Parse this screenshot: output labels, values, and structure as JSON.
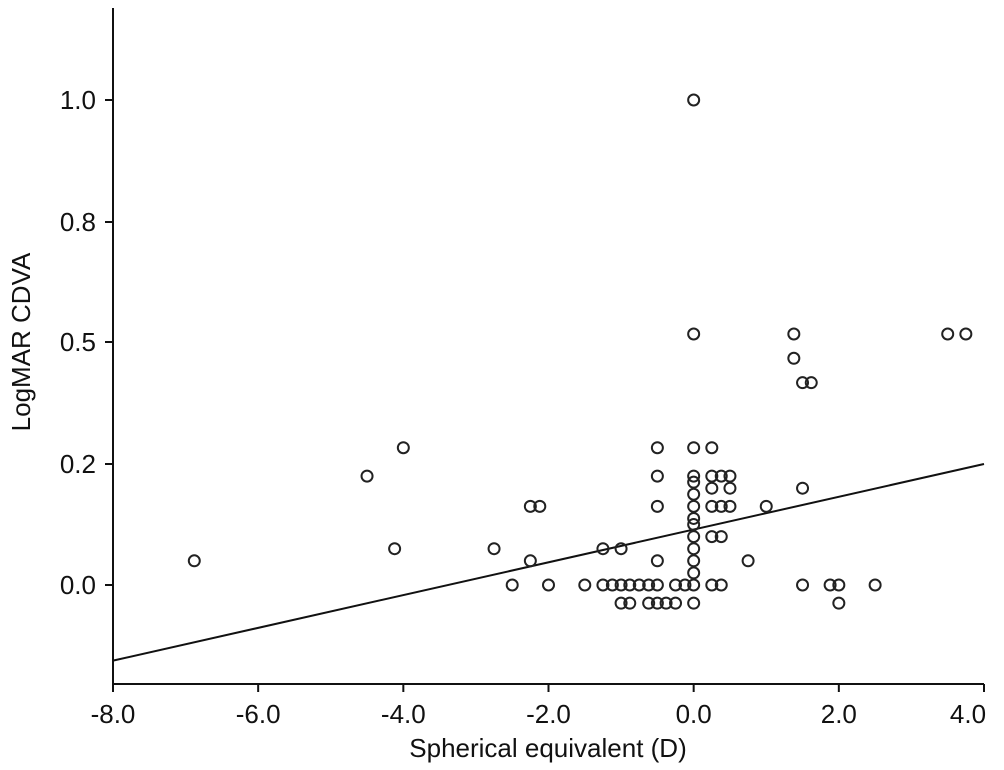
{
  "chart_data": {
    "type": "scatter",
    "title": "",
    "xlabel": "Spherical equivalent (D)",
    "ylabel": "LogMAR CDVA",
    "xlim": [
      -8.0,
      4.0
    ],
    "ylim": [
      -0.17,
      1.15
    ],
    "x_ticks": [
      -8.0,
      -6.0,
      -4.0,
      -2.0,
      0.0,
      2.0,
      4.0
    ],
    "x_tick_labels": [
      "-8.0",
      "-6.0",
      "-4.0",
      "-2.0",
      "0.0",
      "2.0",
      "4.0"
    ],
    "y_ticks": [
      0.0,
      0.2,
      0.5,
      0.8,
      1.0
    ],
    "y_tick_labels": [
      "0.0",
      "0.2",
      "0.5",
      "0.8",
      "1.0"
    ],
    "grid": false,
    "legend": "none",
    "colors": {
      "marker": "#222222",
      "line": "#111111",
      "axis": "#111111"
    },
    "series": [
      {
        "points": [
          [
            -6.88,
            0.04
          ],
          [
            -4.5,
            0.18
          ],
          [
            -4.12,
            0.06
          ],
          [
            -4.0,
            0.24
          ],
          [
            -2.75,
            0.06
          ],
          [
            -2.25,
            0.13
          ],
          [
            -2.12,
            0.13
          ],
          [
            -2.25,
            0.04
          ],
          [
            -2.5,
            0.0
          ],
          [
            -2.0,
            0.0
          ],
          [
            -1.5,
            0.0
          ],
          [
            -1.25,
            0.06
          ],
          [
            -1.0,
            0.06
          ],
          [
            -1.25,
            0.0
          ],
          [
            -1.12,
            0.0
          ],
          [
            -1.0,
            0.0
          ],
          [
            -0.88,
            0.0
          ],
          [
            -0.75,
            0.0
          ],
          [
            -0.62,
            0.0
          ],
          [
            -1.0,
            -0.03
          ],
          [
            -0.88,
            -0.03
          ],
          [
            -0.62,
            -0.03
          ],
          [
            -0.5,
            -0.03
          ],
          [
            -0.38,
            -0.03
          ],
          [
            -0.25,
            -0.03
          ],
          [
            -0.5,
            0.0
          ],
          [
            -0.25,
            0.0
          ],
          [
            -0.12,
            0.0
          ],
          [
            -0.5,
            0.04
          ],
          [
            -0.5,
            0.13
          ],
          [
            -0.5,
            0.18
          ],
          [
            -0.5,
            0.24
          ],
          [
            0.0,
            1.0
          ],
          [
            0.0,
            0.52
          ],
          [
            0.0,
            0.24
          ],
          [
            0.0,
            0.18
          ],
          [
            0.0,
            0.17
          ],
          [
            0.0,
            0.15
          ],
          [
            0.0,
            0.13
          ],
          [
            0.0,
            0.11
          ],
          [
            0.0,
            0.1
          ],
          [
            0.0,
            0.08
          ],
          [
            0.0,
            0.06
          ],
          [
            0.0,
            0.04
          ],
          [
            0.0,
            0.02
          ],
          [
            0.0,
            0.0
          ],
          [
            0.0,
            -0.03
          ],
          [
            0.25,
            0.24
          ],
          [
            0.25,
            0.18
          ],
          [
            0.25,
            0.16
          ],
          [
            0.25,
            0.13
          ],
          [
            0.25,
            0.08
          ],
          [
            0.25,
            0.0
          ],
          [
            0.38,
            0.18
          ],
          [
            0.38,
            0.13
          ],
          [
            0.38,
            0.08
          ],
          [
            0.38,
            0.0
          ],
          [
            0.5,
            0.18
          ],
          [
            0.5,
            0.16
          ],
          [
            0.5,
            0.13
          ],
          [
            0.75,
            0.04
          ],
          [
            1.0,
            0.13
          ],
          [
            1.38,
            0.52
          ],
          [
            1.38,
            0.46
          ],
          [
            1.5,
            0.4
          ],
          [
            1.62,
            0.4
          ],
          [
            1.5,
            0.16
          ],
          [
            1.5,
            0.0
          ],
          [
            1.88,
            0.0
          ],
          [
            2.0,
            0.0
          ],
          [
            2.0,
            -0.03
          ],
          [
            2.5,
            0.0
          ],
          [
            3.5,
            0.52
          ],
          [
            3.75,
            0.52
          ]
        ]
      }
    ],
    "fit_line": {
      "x": [
        -8.0,
        4.0
      ],
      "y": [
        -0.125,
        0.2
      ]
    }
  }
}
